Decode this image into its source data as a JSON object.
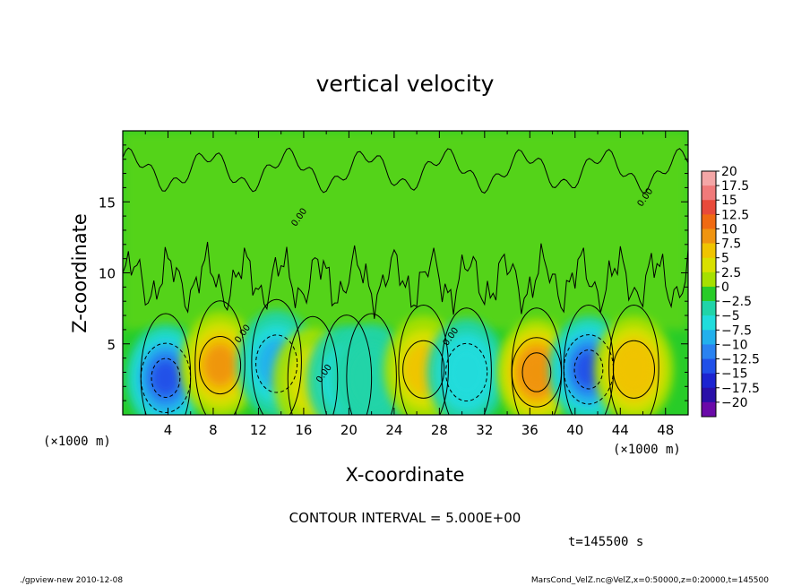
{
  "chart_data": {
    "type": "heatmap",
    "title": "vertical velocity",
    "xlabel": "X-coordinate",
    "ylabel": "Z-coordinate",
    "x_unit": "(×1000 m)",
    "y_unit": "(×1000 m)",
    "xlim": [
      0,
      50
    ],
    "ylim": [
      0,
      20
    ],
    "x_ticks": [
      "4",
      "8",
      "12",
      "16",
      "20",
      "24",
      "28",
      "32",
      "36",
      "40",
      "44",
      "48"
    ],
    "y_ticks": [
      "5",
      "10",
      "15"
    ],
    "zero_contour_label": "0.00",
    "colorbar": {
      "levels": [
        "20",
        "17.5",
        "15",
        "12.5",
        "10",
        "7.5",
        "5",
        "2.5",
        "0",
        "−2.5",
        "−5",
        "−7.5",
        "−10",
        "−12.5",
        "−15",
        "−17.5",
        "−20"
      ],
      "colors": [
        "#f4a6a6",
        "#f07a7a",
        "#e84a3a",
        "#f06a12",
        "#f09410",
        "#f0c400",
        "#d9e000",
        "#a6e000",
        "#28cc28",
        "#20d4a8",
        "#20dcdc",
        "#22b0ec",
        "#2a82f0",
        "#2050e8",
        "#1c24d0",
        "#2a10a8",
        "#6a0aa8"
      ]
    },
    "features": [
      {
        "x": 3.8,
        "z": 2.6,
        "w": -12.5
      },
      {
        "x": 8.6,
        "z": 3.5,
        "w": 9
      },
      {
        "x": 13.6,
        "z": 3.6,
        "w": -7
      },
      {
        "x": 16.8,
        "z": 2.4,
        "w": 4
      },
      {
        "x": 19.8,
        "z": 2.5,
        "w": -4
      },
      {
        "x": 22.0,
        "z": 2.6,
        "w": -3
      },
      {
        "x": 26.6,
        "z": 3.2,
        "w": 7
      },
      {
        "x": 30.4,
        "z": 3.0,
        "w": -6
      },
      {
        "x": 36.6,
        "z": 3.0,
        "w": 11
      },
      {
        "x": 41.2,
        "z": 3.2,
        "w": -12
      },
      {
        "x": 45.2,
        "z": 3.2,
        "w": 8
      }
    ],
    "contour_interval_text": "CONTOUR INTERVAL = 5.000E+00",
    "time_text": "t=145500 s"
  },
  "footer": {
    "left": "./gpview-new  2010-12-08",
    "right": "MarsCond_VelZ.nc@VelZ,x=0:50000,z=0:20000,t=145500"
  }
}
